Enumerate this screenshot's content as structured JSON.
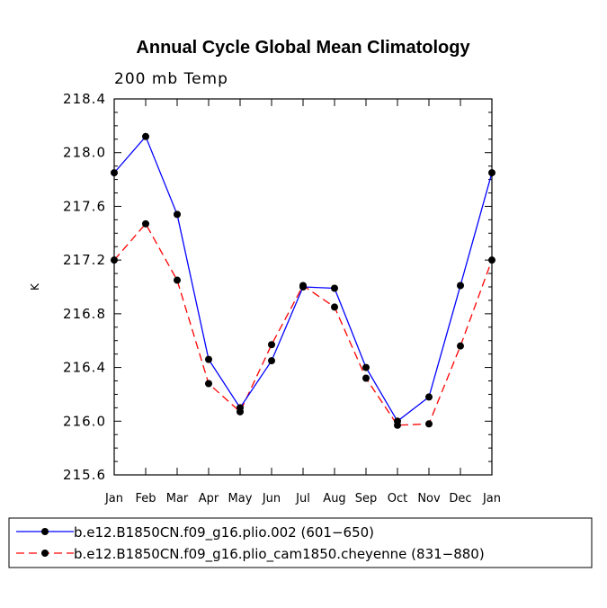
{
  "chart_data": {
    "type": "line",
    "title": "Annual Cycle Global Mean Climatology",
    "subtitle": "200 mb Temp",
    "xlabel": "",
    "ylabel": "K",
    "categories": [
      "Jan",
      "Feb",
      "Mar",
      "Apr",
      "May",
      "Jun",
      "Jul",
      "Aug",
      "Sep",
      "Oct",
      "Nov",
      "Dec",
      "Jan"
    ],
    "ylim": [
      215.6,
      218.4
    ],
    "yticks": [
      "215.6",
      "216.0",
      "216.4",
      "216.8",
      "217.2",
      "217.6",
      "218.0",
      "218.4"
    ],
    "grid": false,
    "legend_position": "bottom",
    "series": [
      {
        "name": "b.e12.B1850CN.f09_g16.plio.002 (601−650)",
        "color": "#0000ff",
        "dash": "solid",
        "values": [
          217.85,
          218.12,
          217.54,
          216.46,
          216.1,
          216.45,
          217.0,
          216.99,
          216.4,
          216.0,
          216.18,
          217.01,
          217.85
        ]
      },
      {
        "name": "b.e12.B1850CN.f09_g16.plio_cam1850.cheyenne (831−880)",
        "color": "#ff0000",
        "dash": "dashed",
        "values": [
          217.2,
          217.47,
          217.05,
          216.28,
          216.07,
          216.57,
          217.01,
          216.85,
          216.32,
          215.97,
          215.98,
          216.56,
          217.2
        ]
      }
    ]
  }
}
